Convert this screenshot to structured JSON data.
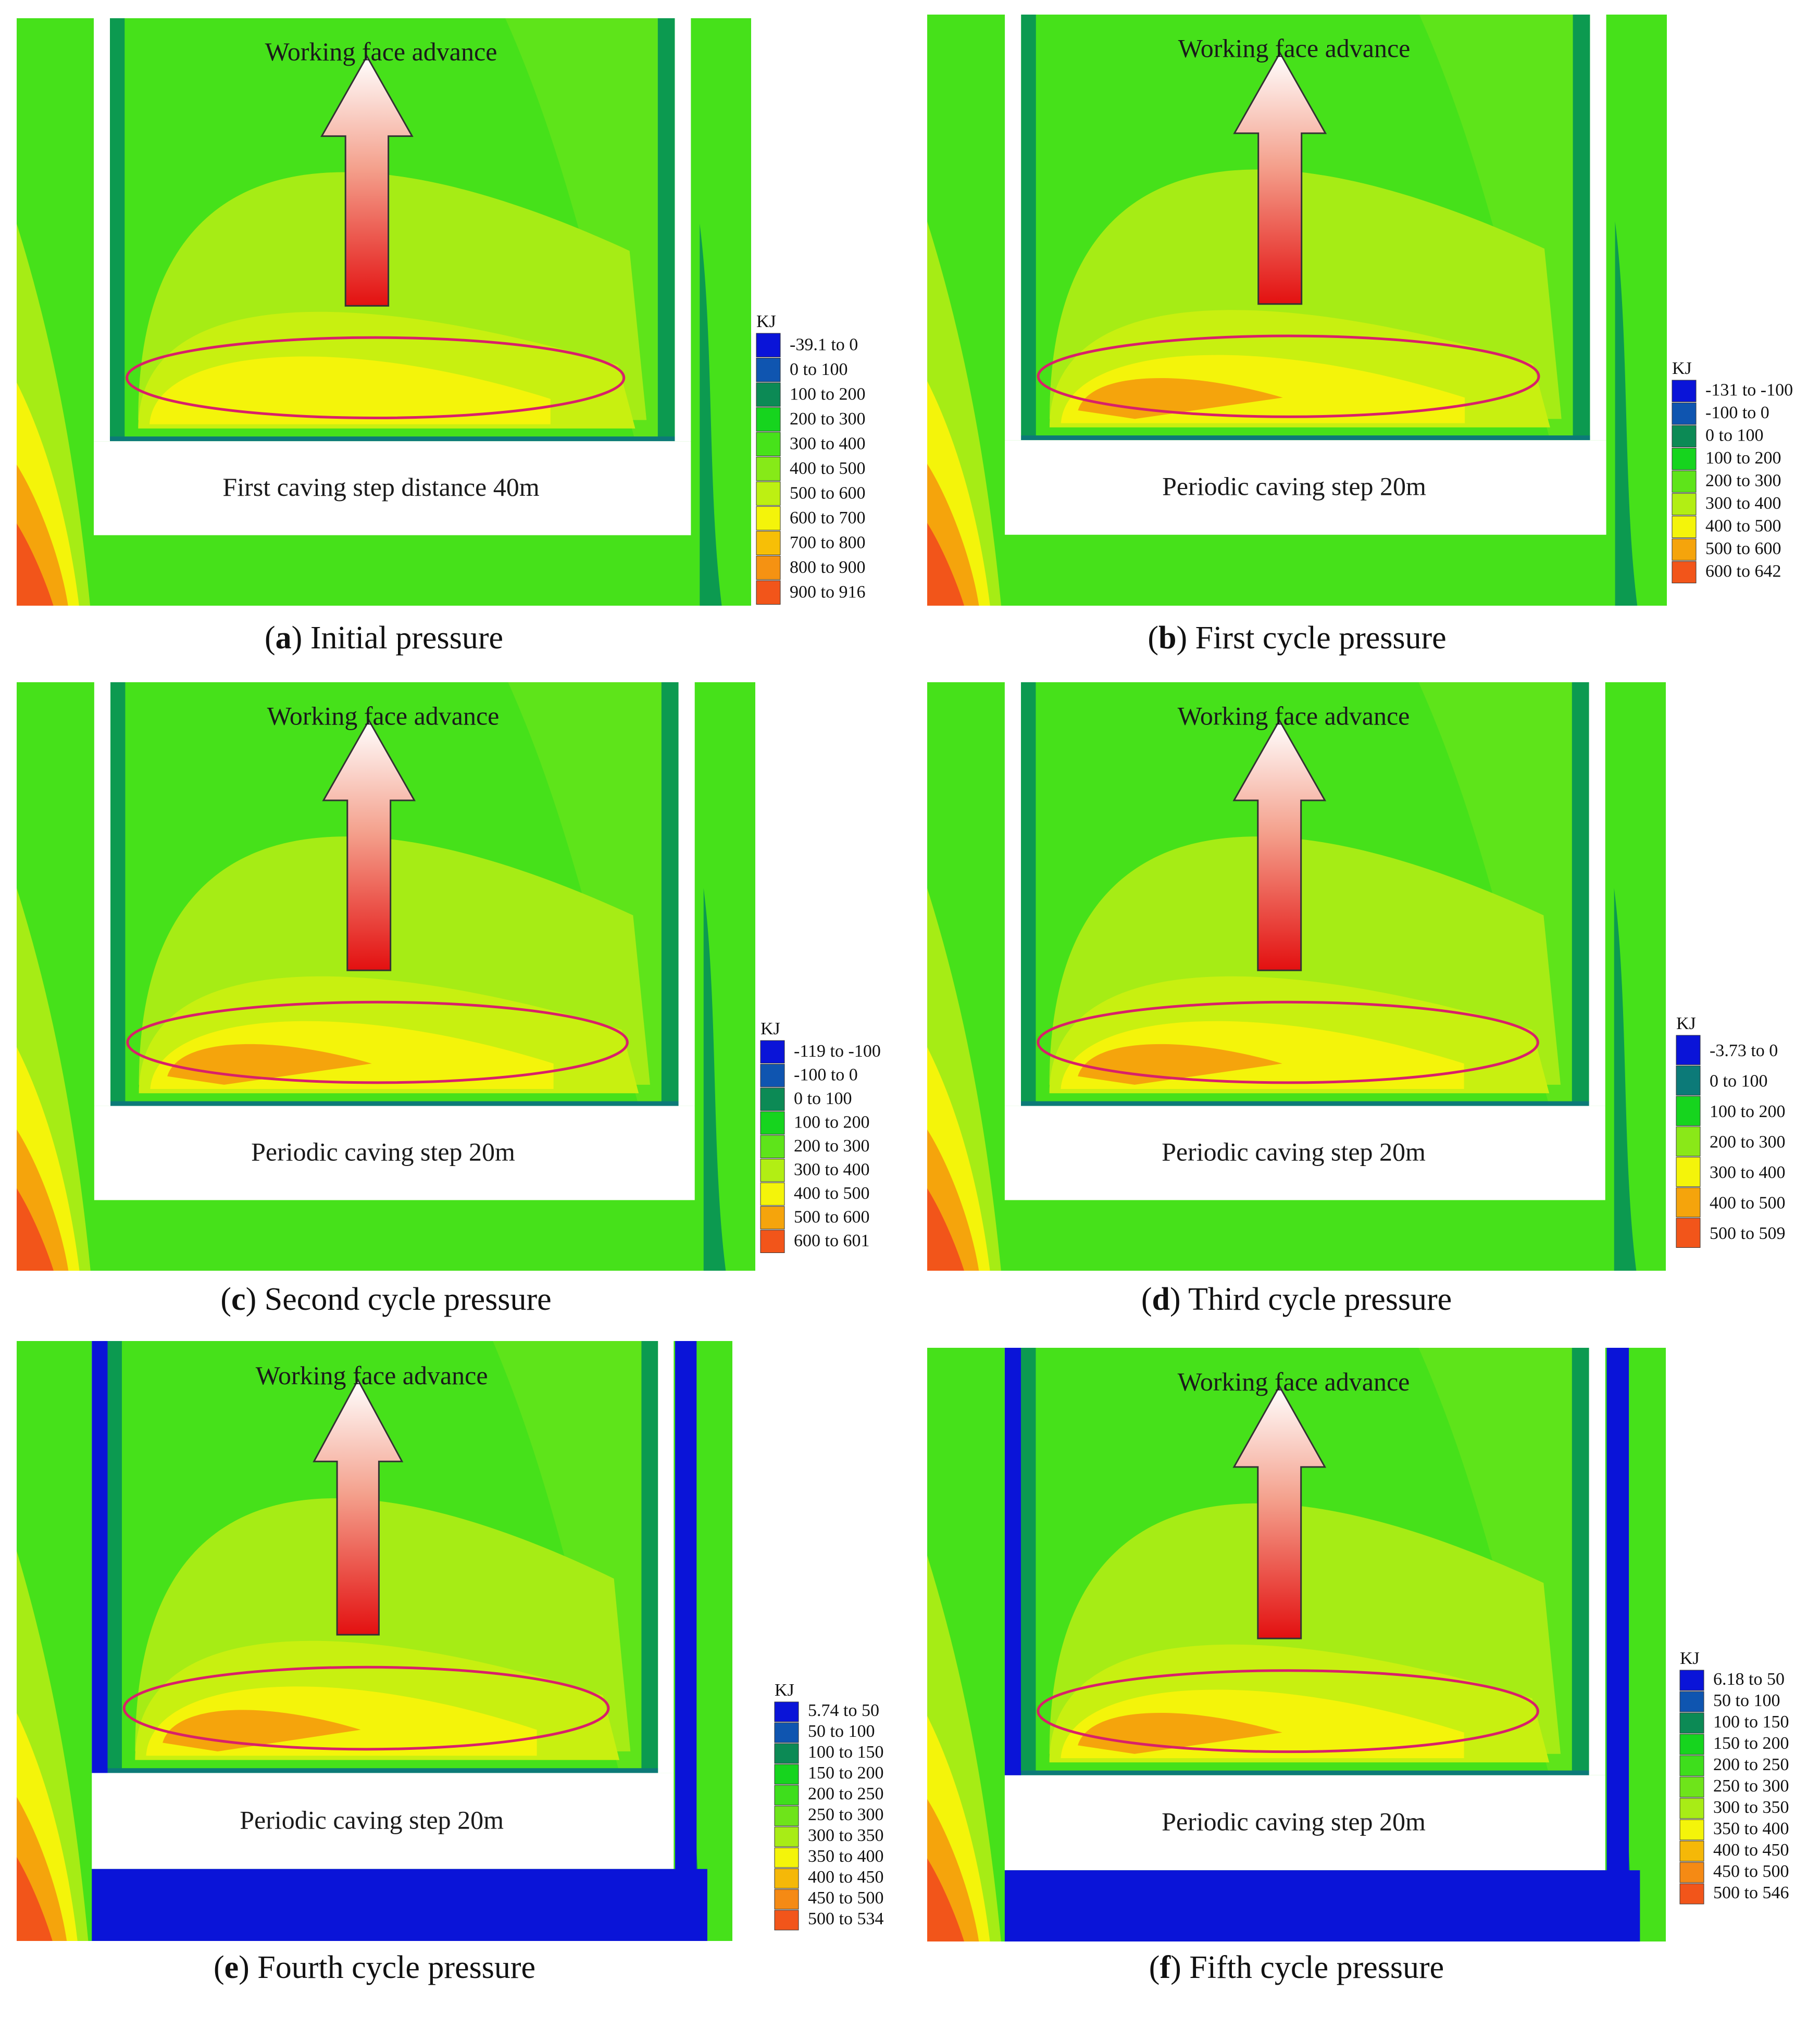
{
  "panels": [
    {
      "id": "a",
      "caption_letter": "a",
      "caption_text": " Initial pressure",
      "advance_label": "Working face advance",
      "step_label": "First caving step distance 40m",
      "legend_unit": "KJ",
      "legend": [
        {
          "label": "-39.1 to 0",
          "color": "#0a14d8"
        },
        {
          "label": "0 to 100",
          "color": "#0f55b0"
        },
        {
          "label": "100 to 200",
          "color": "#0c8a55"
        },
        {
          "label": "200 to 300",
          "color": "#16d41e"
        },
        {
          "label": "300 to 400",
          "color": "#47e21a"
        },
        {
          "label": "400 to 500",
          "color": "#86ea18"
        },
        {
          "label": "500 to 600",
          "color": "#bdf012"
        },
        {
          "label": "600 to 700",
          "color": "#f4f40a"
        },
        {
          "label": "700 to 800",
          "color": "#f7bf06"
        },
        {
          "label": "800 to 900",
          "color": "#f59212"
        },
        {
          "label": "900 to 916",
          "color": "#f2551a"
        }
      ]
    },
    {
      "id": "b",
      "caption_letter": "b",
      "caption_text": " First cycle pressure",
      "advance_label": "Working face advance",
      "step_label": "Periodic caving step  20m",
      "legend_unit": "KJ",
      "legend": [
        {
          "label": "-131 to -100",
          "color": "#0a14d8"
        },
        {
          "label": "-100 to 0",
          "color": "#0f55b0"
        },
        {
          "label": "0 to 100",
          "color": "#0c8a55"
        },
        {
          "label": "100 to 200",
          "color": "#16d41e"
        },
        {
          "label": "200 to 300",
          "color": "#5ee41a"
        },
        {
          "label": "300 to 400",
          "color": "#b2ee14"
        },
        {
          "label": "400 to 500",
          "color": "#f4f40a"
        },
        {
          "label": "500 to 600",
          "color": "#f5a40c"
        },
        {
          "label": "600 to 642",
          "color": "#f2551a"
        }
      ]
    },
    {
      "id": "c",
      "caption_letter": "c",
      "caption_text": " Second cycle pressure",
      "advance_label": "Working face advance",
      "step_label": "Periodic caving step  20m",
      "legend_unit": "KJ",
      "legend": [
        {
          "label": "-119 to -100",
          "color": "#0a14d8"
        },
        {
          "label": "-100 to 0",
          "color": "#0f55b0"
        },
        {
          "label": "0 to 100",
          "color": "#0c8a55"
        },
        {
          "label": "100 to 200",
          "color": "#16d41e"
        },
        {
          "label": "200 to 300",
          "color": "#5ee41a"
        },
        {
          "label": "300 to 400",
          "color": "#b2ee14"
        },
        {
          "label": "400 to 500",
          "color": "#f4f40a"
        },
        {
          "label": "500 to 600",
          "color": "#f5a40c"
        },
        {
          "label": "600 to 601",
          "color": "#f2551a"
        }
      ]
    },
    {
      "id": "d",
      "caption_letter": "d",
      "caption_text": " Third cycle pressure",
      "advance_label": "Working face advance",
      "step_label": "Periodic caving step  20m",
      "legend_unit": "KJ",
      "legend": [
        {
          "label": "-3.73 to 0",
          "color": "#0a14d8"
        },
        {
          "label": "0 to 100",
          "color": "#0c7a78"
        },
        {
          "label": "100 to 200",
          "color": "#16d41e"
        },
        {
          "label": "200 to 300",
          "color": "#8ae818"
        },
        {
          "label": "300 to 400",
          "color": "#f4f40a"
        },
        {
          "label": "400 to 500",
          "color": "#f5a40c"
        },
        {
          "label": "500 to 509",
          "color": "#f2551a"
        }
      ]
    },
    {
      "id": "e",
      "caption_letter": "e",
      "caption_text": " Fourth cycle pressure",
      "advance_label": "Working face advance",
      "step_label": "Periodic caving step  20m",
      "legend_unit": "KJ",
      "legend": [
        {
          "label": "5.74 to 50",
          "color": "#0a14d8"
        },
        {
          "label": "50 to 100",
          "color": "#0f55b0"
        },
        {
          "label": "100 to 150",
          "color": "#0c8a55"
        },
        {
          "label": "150 to 200",
          "color": "#16d41e"
        },
        {
          "label": "200 to 250",
          "color": "#3ede1c"
        },
        {
          "label": "250 to 300",
          "color": "#6ee41a"
        },
        {
          "label": "300 to 350",
          "color": "#a8ec16"
        },
        {
          "label": "350 to 400",
          "color": "#f4f40a"
        },
        {
          "label": "400 to 450",
          "color": "#f5b808"
        },
        {
          "label": "450 to 500",
          "color": "#f58a14"
        },
        {
          "label": "500 to 534",
          "color": "#f2551a"
        }
      ]
    },
    {
      "id": "f",
      "caption_letter": "f",
      "caption_text": " Fifth cycle pressure",
      "advance_label": "Working face advance",
      "step_label": "Periodic caving step  20m",
      "legend_unit": "KJ",
      "legend": [
        {
          "label": "6.18 to 50",
          "color": "#0a14d8"
        },
        {
          "label": "50 to 100",
          "color": "#0f55b0"
        },
        {
          "label": "100 to 150",
          "color": "#0c8a55"
        },
        {
          "label": "150 to 200",
          "color": "#16d41e"
        },
        {
          "label": "200 to 250",
          "color": "#3ede1c"
        },
        {
          "label": "250 to 300",
          "color": "#6ee41a"
        },
        {
          "label": "300 to 350",
          "color": "#a8ec16"
        },
        {
          "label": "350 to 400",
          "color": "#f4f40a"
        },
        {
          "label": "400 to 450",
          "color": "#f5b808"
        },
        {
          "label": "450 to 500",
          "color": "#f58a14"
        },
        {
          "label": "500 to 546",
          "color": "#f2551a"
        }
      ]
    }
  ]
}
